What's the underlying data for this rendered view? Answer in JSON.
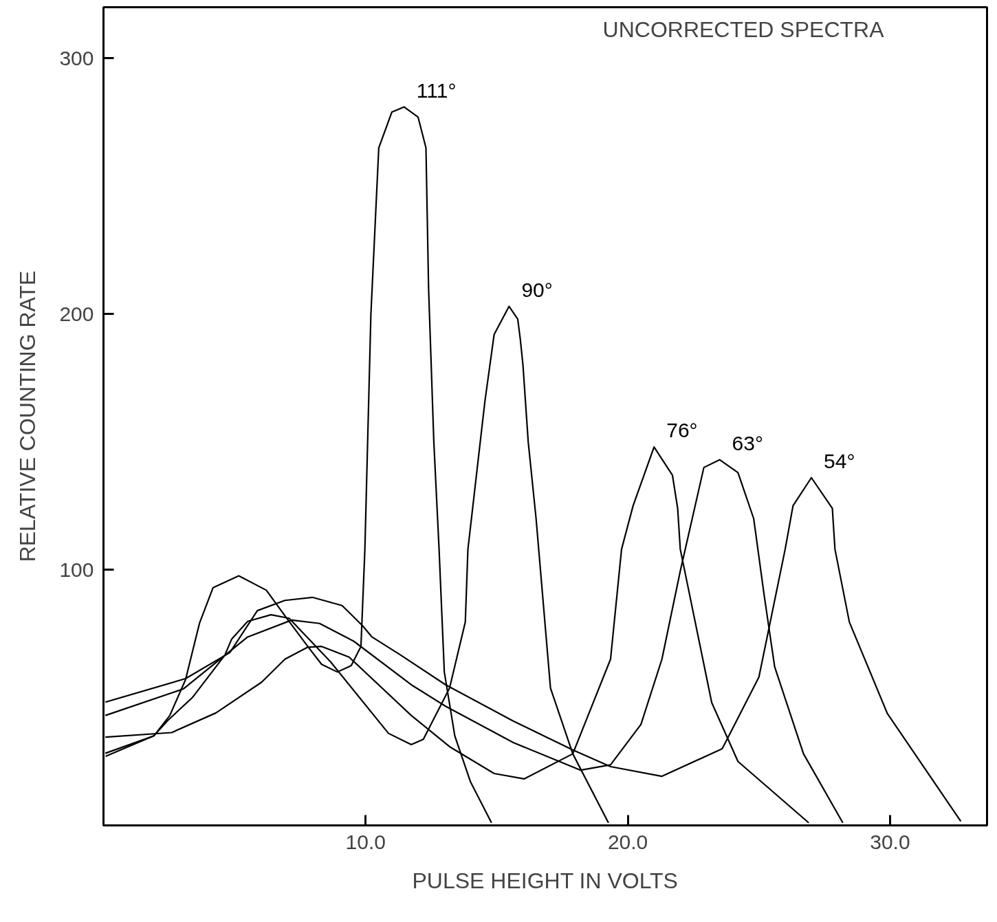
{
  "chart_data": {
    "type": "line",
    "title": "UNCORRECTED SPECTRA",
    "xlabel": "PULSE HEIGHT IN VOLTS",
    "ylabel": "RELATIVE COUNTING RATE",
    "xlim": [
      0,
      33.7
    ],
    "ylim": [
      0,
      320
    ],
    "xticks": [
      {
        "value": 10,
        "label": "10.0"
      },
      {
        "value": 20,
        "label": "20.0"
      },
      {
        "value": 30,
        "label": "30.0"
      }
    ],
    "yticks": [
      100,
      200,
      300
    ],
    "grid": false,
    "marker": "none",
    "line_style": "solid",
    "series": [
      {
        "name": "111°",
        "color": "#000000",
        "x": [
          0.08,
          1.92,
          2.53,
          3.13,
          3.66,
          4.18,
          5.16,
          6.21,
          6.92,
          7.79,
          8.32,
          8.92,
          9.45,
          9.82,
          9.97,
          10.2,
          10.5,
          11.0,
          11.47,
          12.0,
          12.3,
          12.4,
          12.6,
          12.8,
          13.0,
          13.4,
          14.0,
          14.8
        ],
        "values": [
          27,
          35,
          43,
          57,
          79,
          93,
          97.6,
          92,
          82,
          70,
          63,
          60,
          62.5,
          70,
          108,
          200,
          265,
          279,
          281,
          277,
          265,
          210,
          150,
          108,
          60,
          35,
          17,
          1
        ]
      },
      {
        "name": "90°",
        "color": "#000000",
        "x": [
          0.07,
          1.92,
          2.45,
          3.39,
          4.63,
          4.89,
          5.5,
          6.39,
          7.08,
          8.66,
          10.87,
          11.74,
          12.2,
          13.2,
          13.8,
          13.9,
          14.55,
          14.9,
          15.47,
          15.8,
          15.9,
          16.0,
          16.2,
          16.5,
          17.05,
          17.9,
          19.26
        ],
        "values": [
          28.2,
          35,
          41,
          50,
          66.6,
          72.9,
          79.8,
          82.4,
          81,
          64,
          36,
          31.6,
          33.7,
          53.7,
          79.5,
          108,
          166,
          192,
          203,
          198,
          190,
          180,
          150,
          120,
          53.7,
          28,
          1
        ]
      },
      {
        "name": "76°",
        "color": "#000000",
        "x": [
          0.07,
          2.6,
          4.29,
          6.03,
          6.92,
          7.79,
          8.32,
          9.37,
          11.74,
          13.2,
          14.9,
          16.05,
          17.9,
          19.34,
          19.76,
          20.2,
          21.0,
          21.7,
          21.9,
          22.0,
          23.2,
          24.2,
          26.9
        ],
        "values": [
          34.5,
          36.3,
          44,
          56,
          65,
          69.7,
          70,
          65.8,
          43,
          30.8,
          20.3,
          18.2,
          28,
          65,
          108,
          125,
          148,
          137,
          124,
          108,
          48,
          25,
          1
        ]
      },
      {
        "name": "63°",
        "color": "#000000",
        "x": [
          0.07,
          3.05,
          5.5,
          7.18,
          8.24,
          9.55,
          11.74,
          13.05,
          15.63,
          18.2,
          19.34,
          20.5,
          21.3,
          22.0,
          22.9,
          23.5,
          24.2,
          24.8,
          25.2,
          25.6,
          26.7,
          28.2
        ],
        "values": [
          43,
          53.4,
          73.7,
          80.3,
          79,
          72,
          55,
          46.6,
          32.4,
          21.6,
          23.7,
          39.5,
          65,
          99.5,
          140,
          143,
          138,
          120,
          90,
          62,
          28,
          1
        ]
      },
      {
        "name": "54°",
        "color": "#000000",
        "x": [
          0.07,
          3.13,
          4.82,
          5.87,
          6.92,
          7.97,
          9.1,
          9.89,
          10.24,
          11.34,
          13.05,
          15.63,
          17.9,
          19.34,
          21.3,
          23.6,
          25.0,
          26.0,
          26.3,
          27.0,
          27.8,
          27.9,
          28.45,
          29.9,
          32.7
        ],
        "values": [
          48.2,
          57.4,
          67.6,
          84,
          88,
          89.2,
          86,
          78,
          73.7,
          66.6,
          55,
          40.8,
          29.5,
          23,
          19.2,
          30,
          58,
          108,
          125,
          136,
          124,
          108,
          79.5,
          43.7,
          1.6
        ]
      }
    ]
  }
}
